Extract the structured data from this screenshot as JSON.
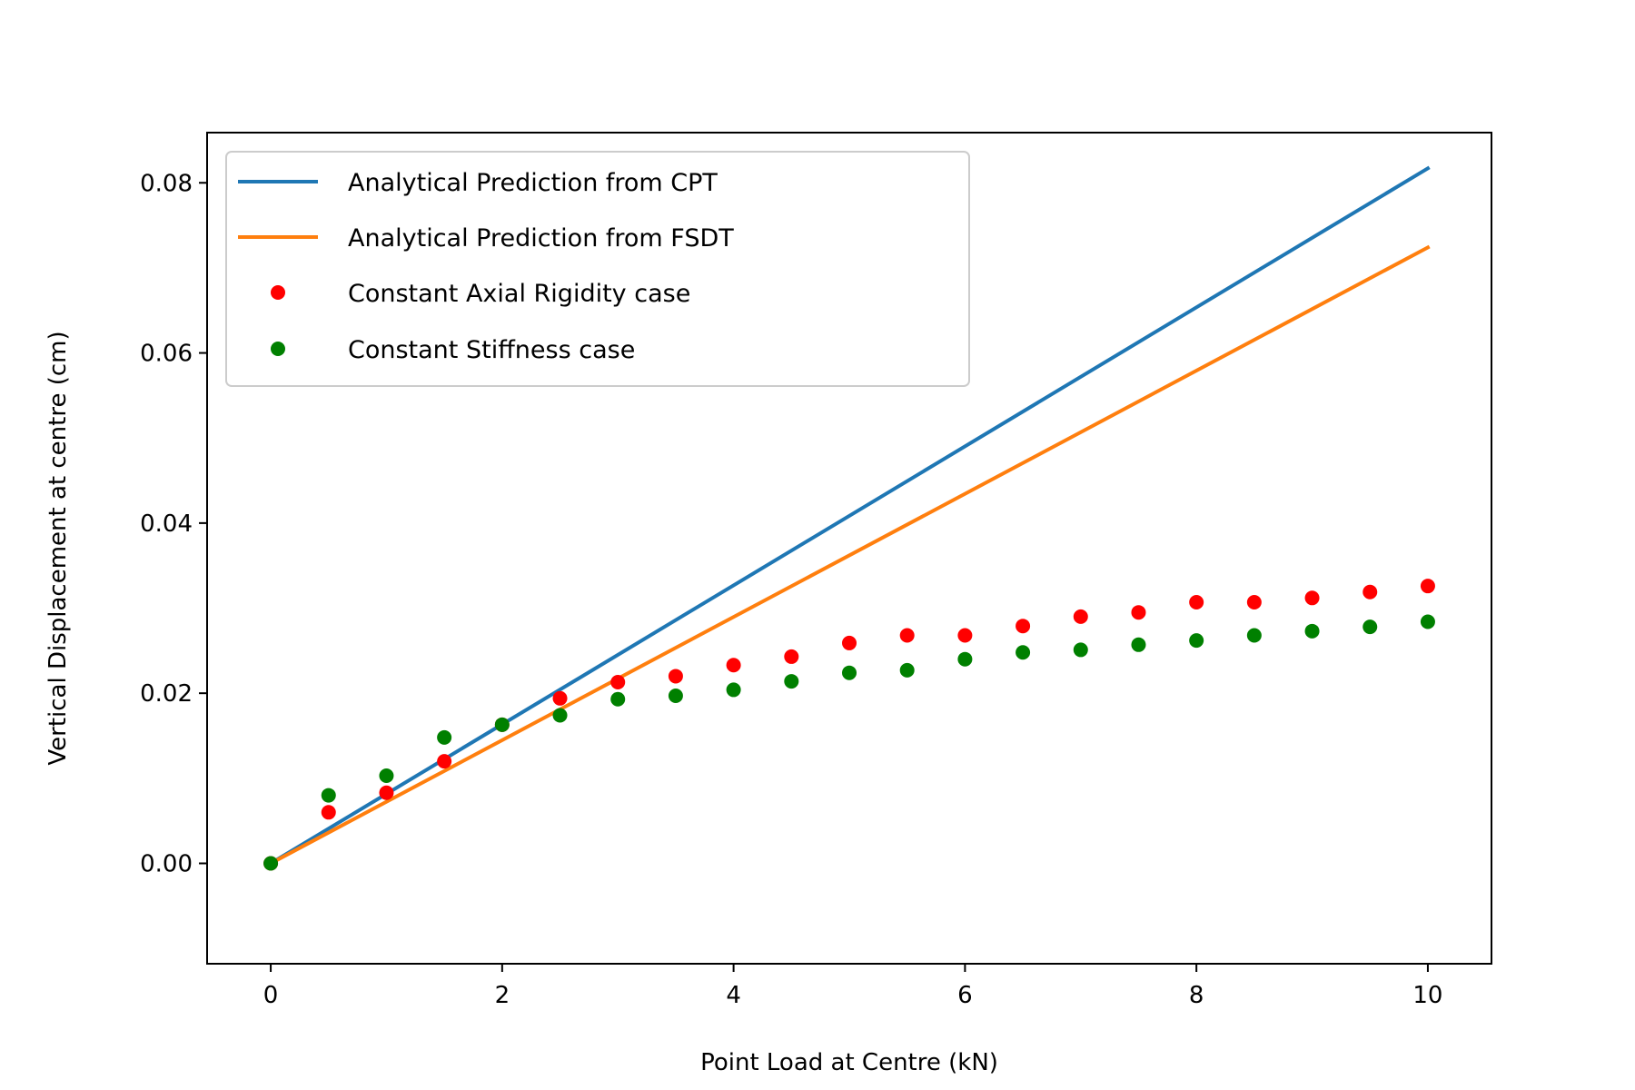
{
  "chart_data": {
    "type": "scatter",
    "title": "",
    "xlabel": "Point Load at Centre (kN)",
    "ylabel": "Vertical Displacement at centre (cm)",
    "xlim": [
      -0.55,
      10.55
    ],
    "ylim": [
      -0.0118,
      0.0859
    ],
    "xticks": [
      0,
      2,
      4,
      6,
      8,
      10
    ],
    "xtick_labels": [
      "0",
      "2",
      "4",
      "6",
      "8",
      "10"
    ],
    "yticks": [
      0.0,
      0.02,
      0.04,
      0.06,
      0.08
    ],
    "ytick_labels": [
      "0.00",
      "0.02",
      "0.04",
      "0.06",
      "0.08"
    ],
    "grid": false,
    "legend_position": "top-left",
    "series": [
      {
        "name": "Analytical Prediction from CPT",
        "kind": "line",
        "color": "#1f77b4",
        "x": [
          0,
          10
        ],
        "y": [
          0,
          0.0817
        ]
      },
      {
        "name": "Analytical Prediction from FSDT",
        "kind": "line",
        "color": "#ff7f0e",
        "x": [
          0,
          10
        ],
        "y": [
          0,
          0.0724
        ]
      },
      {
        "name": "Constant Axial Rigidity case",
        "kind": "scatter",
        "color": "#ff0000",
        "x": [
          0,
          0.5,
          1,
          1.5,
          2,
          2.5,
          3,
          3.5,
          4,
          4.5,
          5,
          5.5,
          6,
          6.5,
          7,
          7.5,
          8,
          8.5,
          9,
          9.5,
          10
        ],
        "y": [
          0,
          0.006,
          0.0083,
          0.012,
          0.0163,
          0.0194,
          0.0213,
          0.022,
          0.0233,
          0.0243,
          0.0259,
          0.0268,
          0.0268,
          0.0279,
          0.029,
          0.0295,
          0.0307,
          0.0307,
          0.0312,
          0.0319,
          0.0326
        ]
      },
      {
        "name": "Constant Stiffness case",
        "kind": "scatter",
        "color": "#008000",
        "x": [
          0,
          0.5,
          1,
          1.5,
          2,
          2.5,
          3,
          3.5,
          4,
          4.5,
          5,
          5.5,
          6,
          6.5,
          7,
          7.5,
          8,
          8.5,
          9,
          9.5,
          10
        ],
        "y": [
          0,
          0.008,
          0.0103,
          0.0148,
          0.0163,
          0.0174,
          0.0193,
          0.0197,
          0.0204,
          0.0214,
          0.0224,
          0.0227,
          0.024,
          0.0248,
          0.0251,
          0.0257,
          0.0262,
          0.0268,
          0.0273,
          0.0278,
          0.0284
        ]
      }
    ]
  }
}
